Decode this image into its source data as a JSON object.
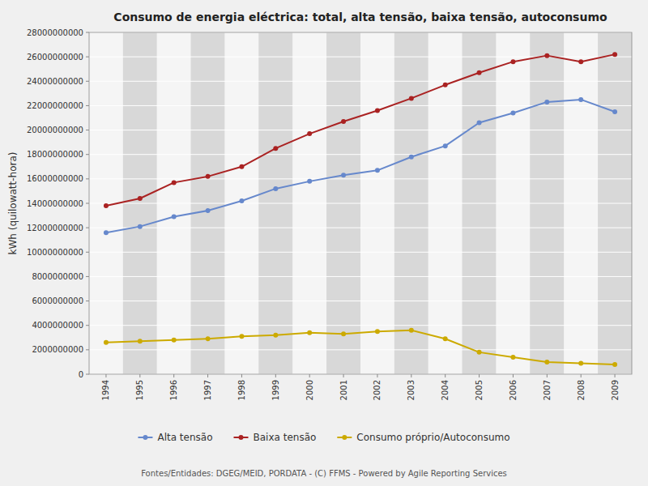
{
  "chart_data": {
    "type": "line",
    "title": "Consumo de energia eléctrica: total, alta tensão, baixa tensão, autoconsumo",
    "y_label": "kWh (quilowatt-hora)",
    "footer": "Fontes/Entidades: DGEG/MEID, PORDATA - (C) FFMS - Powered by Agile Reporting Services",
    "x": [
      1994,
      1995,
      1996,
      1997,
      1998,
      1999,
      2000,
      2001,
      2002,
      2003,
      2004,
      2005,
      2006,
      2007,
      2008,
      2009
    ],
    "series": [
      {
        "name": "Alta tensão",
        "color": "#6688cc",
        "marker": "circle",
        "values": [
          11600000000,
          12100000000,
          12900000000,
          13400000000,
          14200000000,
          15200000000,
          15800000000,
          16300000000,
          16700000000,
          17800000000,
          18700000000,
          20600000000,
          21400000000,
          22300000000,
          22500000000,
          21500000000
        ]
      },
      {
        "name": "Baixa tensão",
        "color": "#aa2222",
        "marker": "circle",
        "values": [
          13800000000,
          14400000000,
          15700000000,
          16200000000,
          17000000000,
          18500000000,
          19700000000,
          20700000000,
          21600000000,
          22600000000,
          23700000000,
          24700000000,
          25600000000,
          26100000000,
          25600000000,
          26200000000
        ]
      },
      {
        "name": "Consumo próprio/Autoconsumo",
        "color": "#ccaa00",
        "marker": "circle",
        "values": [
          2600000000,
          2700000000,
          2800000000,
          2900000000,
          3100000000,
          3200000000,
          3400000000,
          3300000000,
          3500000000,
          3600000000,
          2900000000,
          1800000000,
          1400000000,
          1000000000,
          900000000,
          800000000
        ]
      }
    ],
    "xlim": [
      1993.5,
      2009.5
    ],
    "xticks": [
      1994,
      1995,
      1996,
      1997,
      1998,
      1999,
      2000,
      2001,
      2002,
      2003,
      2004,
      2005,
      2006,
      2007,
      2008,
      2009
    ],
    "ylim": [
      0,
      28000000000
    ],
    "yticks": [
      0,
      2000000000,
      4000000000,
      6000000000,
      8000000000,
      10000000000,
      12000000000,
      14000000000,
      16000000000,
      18000000000,
      20000000000,
      22000000000,
      24000000000,
      26000000000,
      28000000000
    ],
    "grid": true,
    "legend": "bottom"
  }
}
